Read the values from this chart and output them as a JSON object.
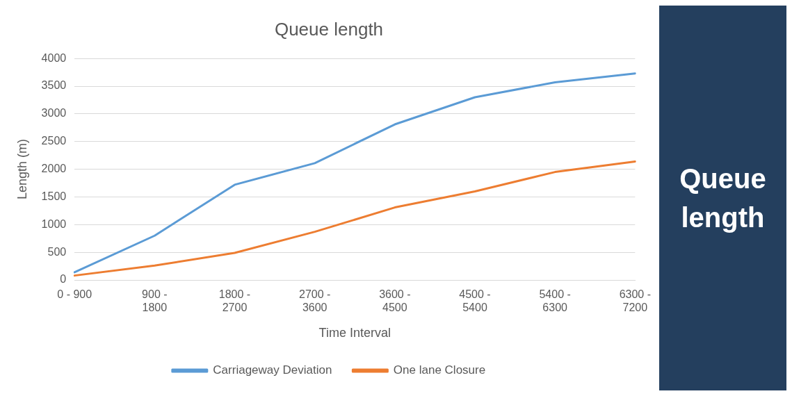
{
  "chart_data": {
    "type": "line",
    "title": "Queue length",
    "xlabel": "Time Interval",
    "ylabel": "Length (m)",
    "categories": [
      "0 - 900",
      "900 - 1800",
      "1800 - 2700",
      "2700 - 3600",
      "3600 - 4500",
      "4500 - 5400",
      "5400 - 6300",
      "6300 - 7200"
    ],
    "series": [
      {
        "name": "Carriageway Deviation",
        "color": "#5b9bd5",
        "values": [
          140,
          800,
          1720,
          2110,
          2810,
          3300,
          3570,
          3730
        ]
      },
      {
        "name": "One lane Closure",
        "color": "#ed7d31",
        "values": [
          80,
          260,
          490,
          870,
          1310,
          1600,
          1950,
          2140
        ]
      }
    ],
    "ylim": [
      0,
      4000
    ],
    "yticks": [
      0,
      500,
      1000,
      1500,
      2000,
      2500,
      3000,
      3500,
      4000
    ],
    "grid": "y",
    "legend": "bottom",
    "marker": "none",
    "line_style": "solid",
    "annotations": [
      "Queue length"
    ]
  }
}
